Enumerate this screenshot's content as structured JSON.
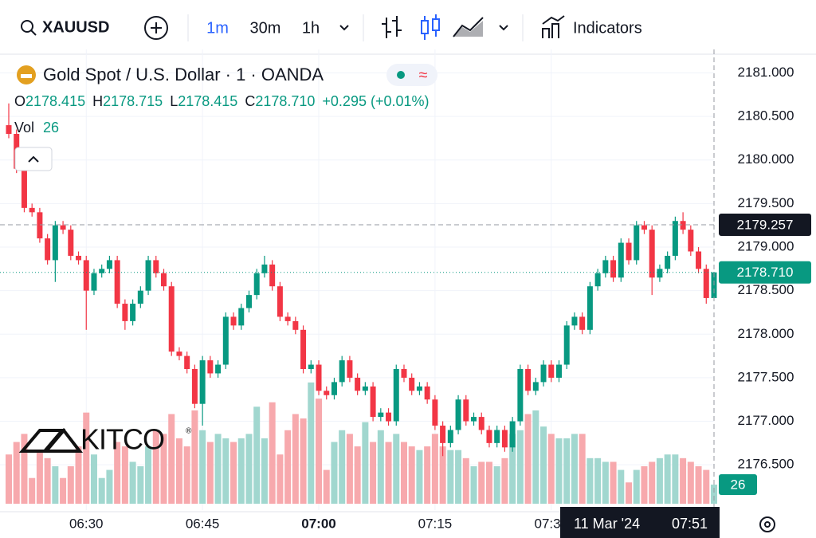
{
  "toolbar": {
    "symbol": "XAUUSD",
    "intervals": [
      "1m",
      "30m",
      "1h"
    ],
    "indicators": "Indicators"
  },
  "legend": {
    "title": "Gold Spot / U.S. Dollar · 1 · OANDA",
    "ohlc": [
      {
        "key": "O",
        "value": "2178.415"
      },
      {
        "key": "H",
        "value": "2178.715"
      },
      {
        "key": "L",
        "value": "2178.415"
      },
      {
        "key": "C",
        "value": "2178.710"
      }
    ],
    "change": "+0.295",
    "change_pct": "(+0.01%)",
    "vol_label": "Vol"
  },
  "logo": "KITCO",
  "chart_data": {
    "type": "candlestick",
    "up_color": "#089981",
    "down_color": "#f23645",
    "up_volume_color": "#a1d7cf",
    "down_volume_color": "#f7a9ad",
    "grid": true,
    "ylim": [
      2175.98,
      2181.27
    ],
    "yticks": [
      {
        "value": 2176.5,
        "label": "2176.500"
      },
      {
        "value": 2177,
        "label": "2177.000"
      },
      {
        "value": 2177.5,
        "label": "2177.500"
      },
      {
        "value": 2178,
        "label": "2178.000"
      },
      {
        "value": 2178.5,
        "label": "2178.500"
      },
      {
        "value": 2179,
        "label": "2179.000"
      },
      {
        "value": 2179.5,
        "label": "2179.500"
      },
      {
        "value": 2180,
        "label": "2180.000"
      },
      {
        "value": 2180.5,
        "label": "2180.500"
      },
      {
        "value": 2181,
        "label": "2181.000"
      }
    ],
    "y2lim": [
      0,
      180
    ],
    "categories": [
      null,
      null,
      null,
      null,
      null,
      null,
      null,
      null,
      null,
      null,
      "06:30",
      null,
      null,
      null,
      null,
      null,
      null,
      null,
      null,
      null,
      null,
      null,
      null,
      null,
      null,
      "06:45",
      null,
      null,
      null,
      null,
      null,
      null,
      null,
      null,
      null,
      null,
      null,
      null,
      null,
      null,
      "07:00",
      null,
      null,
      null,
      null,
      null,
      null,
      null,
      null,
      null,
      null,
      null,
      null,
      null,
      null,
      "07:15",
      null,
      null,
      null,
      null,
      null,
      null,
      null,
      null,
      null,
      null,
      null,
      null,
      null,
      null,
      "07:30",
      null,
      null,
      null,
      null,
      null,
      null,
      null,
      null,
      null,
      null,
      null,
      null,
      null,
      null,
      null,
      null,
      null,
      null,
      null,
      null,
      null
    ],
    "open": [
      2180.4,
      2180.3,
      2179.9,
      2179.45,
      2179.4,
      2179.1,
      2178.85,
      2179.25,
      2179.2,
      2178.9,
      2178.85,
      2178.5,
      2178.7,
      2178.75,
      2178.85,
      2178.35,
      2178.15,
      2178.35,
      2178.5,
      2178.85,
      2178.7,
      2178.55,
      2177.8,
      2177.75,
      2177.6,
      2177.2,
      2177.7,
      2177.55,
      2177.65,
      2178.2,
      2178.1,
      2178.3,
      2178.45,
      2178.7,
      2178.8,
      2178.55,
      2178.2,
      2178.15,
      2178.05,
      2177.6,
      2177.65,
      2177.35,
      2177.3,
      2177.45,
      2177.7,
      2177.5,
      2177.35,
      2177.4,
      2177.05,
      2177.1,
      2177.0,
      2177.6,
      2177.5,
      2177.35,
      2177.4,
      2177.25,
      2176.95,
      2176.75,
      2176.9,
      2177.25,
      2177.0,
      2177.05,
      2176.9,
      2176.75,
      2176.9,
      2176.7,
      2177.0,
      2177.6,
      2177.35,
      2177.45,
      2177.65,
      2177.5,
      2177.65,
      2178.1,
      2178.2,
      2178.05,
      2178.55,
      2178.7,
      2178.85,
      2178.65,
      2179.05,
      2178.85,
      2179.25,
      2179.2,
      2178.65,
      2178.75,
      2178.9,
      2179.3,
      2179.2,
      2178.95,
      2178.75,
      2178.415
    ],
    "high": [
      2180.65,
      2180.35,
      2179.95,
      2179.5,
      2179.45,
      2179.15,
      2179.3,
      2179.3,
      2179.25,
      2178.95,
      2178.9,
      2178.75,
      2178.8,
      2178.9,
      2178.9,
      2178.4,
      2178.4,
      2178.55,
      2178.9,
      2178.9,
      2178.75,
      2178.6,
      2177.85,
      2177.8,
      2177.65,
      2177.75,
      2177.75,
      2177.7,
      2178.25,
      2178.25,
      2178.35,
      2178.5,
      2178.75,
      2178.9,
      2178.85,
      2178.6,
      2178.25,
      2178.2,
      2178.1,
      2177.7,
      2177.7,
      2177.4,
      2177.5,
      2177.75,
      2177.75,
      2177.55,
      2177.45,
      2177.45,
      2177.15,
      2177.15,
      2177.65,
      2177.65,
      2177.55,
      2177.45,
      2177.45,
      2177.3,
      2177.0,
      2176.95,
      2177.3,
      2177.3,
      2177.1,
      2177.1,
      2176.95,
      2176.95,
      2176.95,
      2177.05,
      2177.65,
      2177.65,
      2177.5,
      2177.7,
      2177.7,
      2177.7,
      2178.15,
      2178.25,
      2178.25,
      2178.6,
      2178.75,
      2178.9,
      2178.9,
      2179.1,
      2179.1,
      2179.3,
      2179.3,
      2179.25,
      2178.8,
      2178.95,
      2179.35,
      2179.4,
      2179.25,
      2179.0,
      2178.8,
      2178.715
    ],
    "low": [
      2180.25,
      2179.85,
      2179.4,
      2179.35,
      2179.05,
      2178.8,
      2178.6,
      2179.15,
      2178.85,
      2178.8,
      2178.05,
      2178.45,
      2178.65,
      2178.7,
      2178.3,
      2178.05,
      2178.1,
      2178.3,
      2178.45,
      2178.65,
      2178.5,
      2177.75,
      2177.7,
      2177.55,
      2177.15,
      2176.95,
      2177.5,
      2177.5,
      2177.6,
      2178.05,
      2178.05,
      2178.25,
      2178.4,
      2178.65,
      2178.5,
      2178.15,
      2178.1,
      2178.0,
      2177.55,
      2177.55,
      2177.3,
      2177.25,
      2177.25,
      2177.4,
      2177.45,
      2177.3,
      2177.3,
      2177.0,
      2177.0,
      2176.95,
      2176.95,
      2177.45,
      2177.3,
      2177.3,
      2177.2,
      2176.9,
      2176.6,
      2176.7,
      2176.85,
      2176.95,
      2176.95,
      2176.85,
      2176.7,
      2176.7,
      2176.65,
      2176.65,
      2176.95,
      2177.3,
      2177.3,
      2177.4,
      2177.45,
      2177.45,
      2177.6,
      2178.05,
      2178.0,
      2178.0,
      2178.5,
      2178.65,
      2178.6,
      2178.6,
      2178.8,
      2178.8,
      2179.15,
      2178.45,
      2178.6,
      2178.7,
      2178.85,
      2179.15,
      2178.9,
      2178.7,
      2178.35,
      2178.415
    ],
    "close": [
      2180.3,
      2179.9,
      2179.45,
      2179.4,
      2179.1,
      2178.85,
      2179.25,
      2179.2,
      2178.9,
      2178.85,
      2178.5,
      2178.7,
      2178.75,
      2178.85,
      2178.35,
      2178.15,
      2178.35,
      2178.5,
      2178.85,
      2178.7,
      2178.55,
      2177.8,
      2177.75,
      2177.6,
      2177.2,
      2177.7,
      2177.55,
      2177.65,
      2178.2,
      2178.1,
      2178.3,
      2178.45,
      2178.7,
      2178.8,
      2178.55,
      2178.2,
      2178.15,
      2178.05,
      2177.6,
      2177.65,
      2177.35,
      2177.3,
      2177.45,
      2177.7,
      2177.5,
      2177.35,
      2177.4,
      2177.05,
      2177.1,
      2177.0,
      2177.6,
      2177.5,
      2177.35,
      2177.4,
      2177.25,
      2176.95,
      2176.75,
      2176.9,
      2177.25,
      2177.0,
      2177.05,
      2176.9,
      2176.75,
      2176.9,
      2176.7,
      2177.0,
      2177.6,
      2177.35,
      2177.45,
      2177.65,
      2177.5,
      2177.65,
      2178.1,
      2178.2,
      2178.05,
      2178.55,
      2178.7,
      2178.85,
      2178.65,
      2179.05,
      2178.85,
      2179.25,
      2179.2,
      2178.65,
      2178.75,
      2178.9,
      2179.3,
      2179.2,
      2178.95,
      2178.75,
      2178.415,
      2178.71
    ],
    "volume": [
      67,
      84,
      95,
      35,
      73,
      62,
      51,
      35,
      51,
      78,
      124,
      67,
      35,
      46,
      84,
      78,
      57,
      51,
      78,
      100,
      95,
      122,
      89,
      78,
      127,
      100,
      84,
      95,
      89,
      84,
      89,
      95,
      132,
      89,
      138,
      67,
      100,
      122,
      116,
      165,
      143,
      46,
      84,
      100,
      95,
      78,
      111,
      84,
      100,
      84,
      95,
      84,
      78,
      73,
      78,
      95,
      78,
      73,
      73,
      62,
      51,
      57,
      57,
      51,
      62,
      95,
      100,
      122,
      127,
      105,
      95,
      89,
      89,
      95,
      95,
      62,
      62,
      57,
      57,
      46,
      29,
      46,
      51,
      57,
      62,
      67,
      67,
      62,
      57,
      51,
      46,
      26
    ],
    "last_price": {
      "value": 2178.71,
      "label": "2178.710"
    },
    "crosshair": {
      "price": {
        "value": 2179.257,
        "label": "2179.257"
      },
      "date": "11 Mar '24",
      "time": "07:51"
    }
  }
}
